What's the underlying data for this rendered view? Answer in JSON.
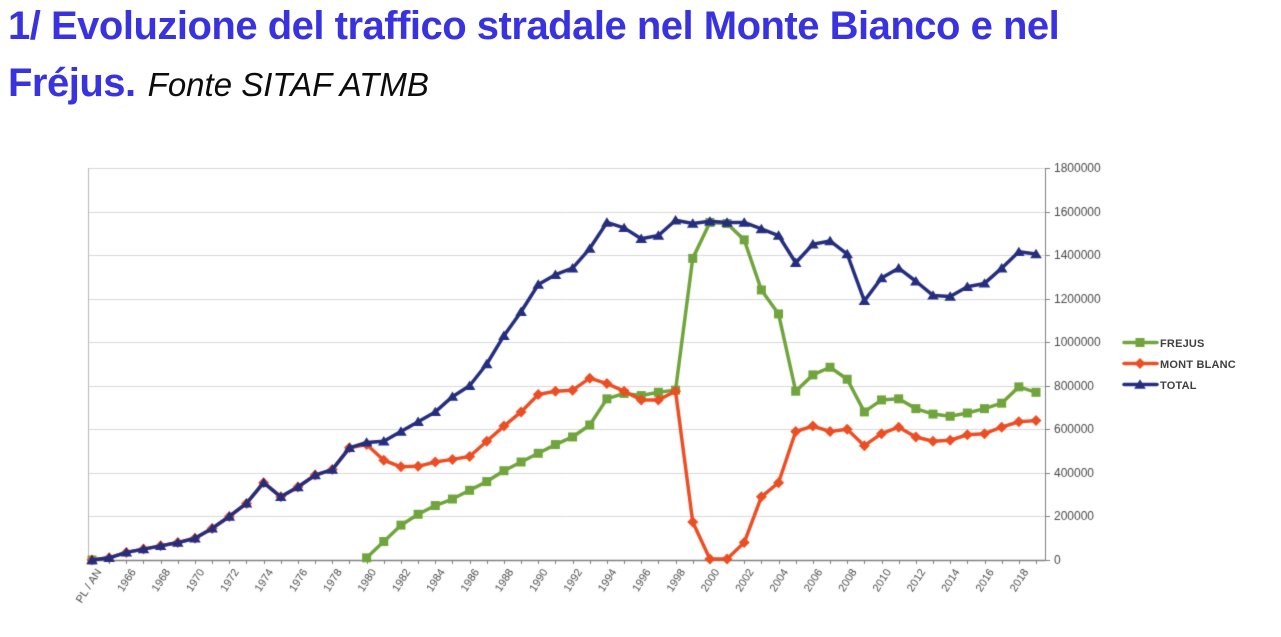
{
  "header": {
    "title_line1": "1/ Evoluzione del traffico stradale nel Monte Bianco e nel",
    "title_line2": "Fréjus.",
    "source_note": "Fonte SITAF ATMB"
  },
  "colors": {
    "title": "#3832df",
    "grid": "#d9d9d9",
    "plot_left_border": "#b8b8b8",
    "axis": "#808080",
    "tick_text": "#4a4a4a",
    "legend_text": "#3f3f3f"
  },
  "chart_data": {
    "type": "line",
    "title": "",
    "xlabel": "",
    "ylabel": "",
    "grid": "horizontal",
    "legend_position": "right",
    "ylim": [
      0,
      1800000
    ],
    "y_tick_step": 200000,
    "y_tick_labels": [
      "0",
      "200000",
      "400000",
      "600000",
      "800000",
      "1000000",
      "1200000",
      "1400000",
      "1600000",
      "1800000"
    ],
    "x_tick_every": 2,
    "categories": [
      "PL / AN",
      "1965",
      "1966",
      "1967",
      "1968",
      "1969",
      "1970",
      "1971",
      "1972",
      "1973",
      "1974",
      "1975",
      "1976",
      "1977",
      "1978",
      "1979",
      "1980",
      "1981",
      "1982",
      "1983",
      "1984",
      "1985",
      "1986",
      "1987",
      "1988",
      "1989",
      "1990",
      "1991",
      "1992",
      "1993",
      "1994",
      "1995",
      "1996",
      "1997",
      "1998",
      "1999",
      "2000",
      "2001",
      "2002",
      "2003",
      "2004",
      "2005",
      "2006",
      "2007",
      "2008",
      "2009",
      "2010",
      "2011",
      "2012",
      "2013",
      "2014",
      "2015",
      "2016",
      "2017",
      "2018",
      "2019"
    ],
    "series": [
      {
        "name": "FREJUS",
        "color": "#70a43c",
        "marker": "square",
        "values": [
          0,
          null,
          null,
          null,
          null,
          null,
          null,
          null,
          null,
          null,
          null,
          null,
          null,
          null,
          null,
          null,
          10000,
          85000,
          160000,
          210000,
          250000,
          280000,
          320000,
          360000,
          410000,
          450000,
          490000,
          530000,
          565000,
          620000,
          740000,
          765000,
          755000,
          770000,
          780000,
          1385000,
          1550000,
          1545000,
          1470000,
          1240000,
          1130000,
          775000,
          850000,
          885000,
          830000,
          680000,
          735000,
          740000,
          695000,
          670000,
          660000,
          675000,
          695000,
          720000,
          795000,
          770000
        ]
      },
      {
        "name": "MONT BLANC",
        "color": "#ec4e24",
        "marker": "diamond",
        "values": [
          0,
          10000,
          35000,
          50000,
          65000,
          80000,
          100000,
          145000,
          200000,
          260000,
          355000,
          290000,
          335000,
          390000,
          415000,
          515000,
          530000,
          458000,
          428000,
          430000,
          450000,
          462000,
          475000,
          545000,
          615000,
          680000,
          760000,
          775000,
          780000,
          835000,
          810000,
          775000,
          735000,
          735000,
          775000,
          175000,
          5000,
          5000,
          80000,
          290000,
          355000,
          590000,
          615000,
          590000,
          600000,
          525000,
          580000,
          610000,
          565000,
          545000,
          550000,
          575000,
          580000,
          610000,
          635000,
          640000
        ]
      },
      {
        "name": "TOTAL",
        "color": "#252e7e",
        "marker": "triangle",
        "values": [
          0,
          10000,
          35000,
          50000,
          65000,
          80000,
          100000,
          145000,
          200000,
          260000,
          355000,
          290000,
          335000,
          390000,
          415000,
          515000,
          540000,
          545000,
          590000,
          635000,
          680000,
          750000,
          800000,
          900000,
          1030000,
          1140000,
          1265000,
          1310000,
          1340000,
          1430000,
          1550000,
          1525000,
          1475000,
          1490000,
          1560000,
          1545000,
          1555000,
          1550000,
          1550000,
          1520000,
          1490000,
          1365000,
          1450000,
          1465000,
          1405000,
          1190000,
          1295000,
          1340000,
          1280000,
          1215000,
          1210000,
          1255000,
          1270000,
          1340000,
          1415000,
          1405000
        ]
      }
    ]
  }
}
